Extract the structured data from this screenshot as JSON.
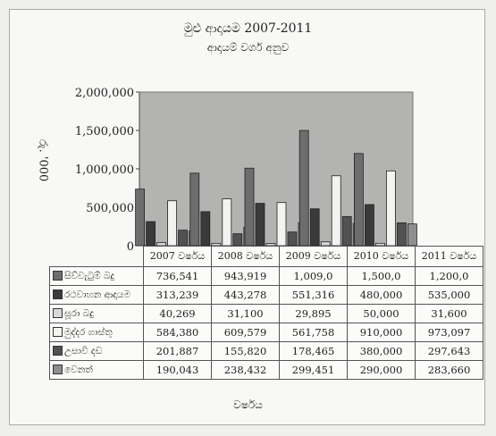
{
  "chart_data": {
    "type": "bar",
    "title": "මුළු ආදායම 2007-2011",
    "subtitle": "ආදායම් වර්ග අනුව",
    "xlabel": "වර්ෂය",
    "ylabel": "රු. '000",
    "ylim": [
      0,
      2000000
    ],
    "yticks": [
      "0",
      "500,000",
      "1,000,000",
      "1,500,000",
      "2,000,000"
    ],
    "grid": false,
    "legend": "table-below",
    "categories": [
      "2007 වර්ෂය",
      "2008 වර්ෂය",
      "2009 වර්ෂය",
      "2010 වර්ෂය",
      "2011 වර්ෂය"
    ],
    "series": [
      {
        "name": "සිව්වැටුම් බදු",
        "color": "#6d6d6d",
        "values": [
          736541,
          943919,
          1009000,
          1500000,
          1200000
        ],
        "labels": [
          "736,541",
          "943,919",
          "1,009,0",
          "1,500,0",
          "1,200,0"
        ]
      },
      {
        "name": "රථවාහන ආදායම",
        "color": "#3a3a3a",
        "values": [
          313239,
          443278,
          551316,
          480000,
          535000
        ],
        "labels": [
          "313,239",
          "443,278",
          "551,316",
          "480,000",
          "535,000"
        ]
      },
      {
        "name": "සූරා බදු",
        "color": "#d8d8d8",
        "values": [
          40269,
          31100,
          29895,
          50000,
          31600
        ],
        "labels": [
          "40,269",
          "31,100",
          "29,895",
          "50,000",
          "31,600"
        ]
      },
      {
        "name": "මුද්දර ගාස්තු",
        "color": "#f3f3f1",
        "values": [
          584380,
          609579,
          561758,
          910000,
          973097
        ],
        "labels": [
          "584,380",
          "609,579",
          "561,758",
          "910,000",
          "973,097"
        ]
      },
      {
        "name": "උසාවි දඩ",
        "color": "#525252",
        "values": [
          201887,
          155820,
          178465,
          380000,
          297643
        ],
        "labels": [
          "201,887",
          "155,820",
          "178,465",
          "380,000",
          "297,643"
        ]
      },
      {
        "name": "වෙනත්",
        "color": "#8e8e8e",
        "values": [
          190043,
          238432,
          299451,
          290000,
          283660
        ],
        "labels": [
          "190,043",
          "238,432",
          "299,451",
          "290,000",
          "283,660"
        ]
      }
    ]
  }
}
